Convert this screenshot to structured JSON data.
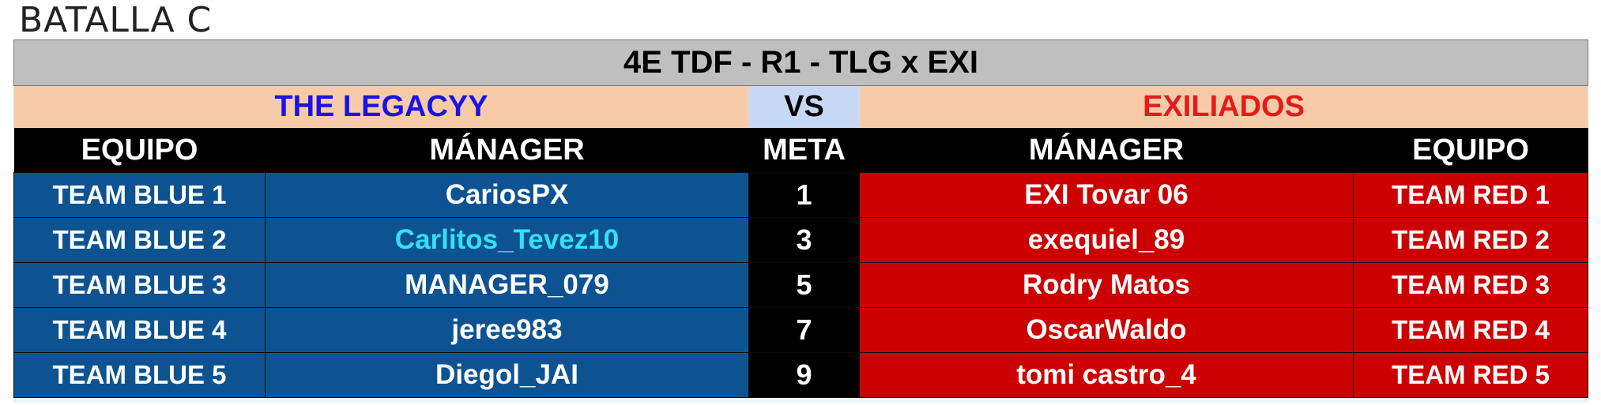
{
  "heading": "BATALLA C",
  "match_title": "4E TDF - R1 - TLG x EXI",
  "team_left": "THE LEGACYY",
  "vs_label": "VS",
  "team_right": "EXILIADOS",
  "columns": {
    "equipo_left": "EQUIPO",
    "manager_left": "MÁNAGER",
    "meta": "META",
    "manager_right": "MÁNAGER",
    "equipo_right": "EQUIPO"
  },
  "rows": [
    {
      "blue_team": "TEAM BLUE 1",
      "blue_manager": "CariosPX",
      "meta": "1",
      "red_manager": "EXI Tovar 06",
      "red_team": "TEAM RED 1"
    },
    {
      "blue_team": "TEAM BLUE 2",
      "blue_manager": "Carlitos_Tevez10",
      "meta": "3",
      "red_manager": "exequiel_89",
      "red_team": "TEAM RED 2"
    },
    {
      "blue_team": "TEAM BLUE 3",
      "blue_manager": "MANAGER_079",
      "meta": "5",
      "red_manager": "Rodry Matos",
      "red_team": "TEAM RED 3"
    },
    {
      "blue_team": "TEAM BLUE 4",
      "blue_manager": "jeree983",
      "meta": "7",
      "red_manager": "OscarWaldo",
      "red_team": "TEAM RED 4"
    },
    {
      "blue_team": "TEAM BLUE 5",
      "blue_manager": "Diegol_JAI",
      "meta": "9",
      "red_manager": "tomi castro_4",
      "red_team": "TEAM RED 5"
    }
  ],
  "colors": {
    "blue_cell": "#0e5391",
    "red_cell": "#cc0000",
    "highlight_manager": "#33e0f7",
    "team_left_text": "#1a12e6",
    "team_right_text": "#e61a1a"
  }
}
